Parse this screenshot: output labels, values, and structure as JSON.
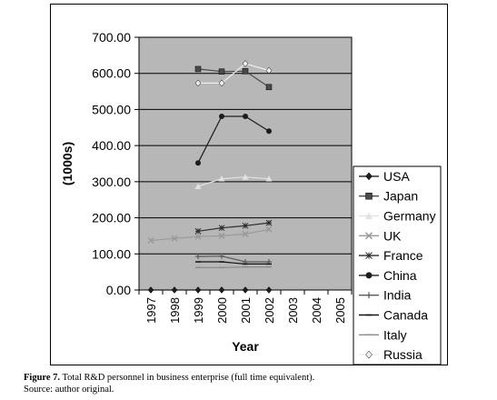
{
  "chart_data": {
    "type": "line",
    "title": "",
    "xlabel": "Year",
    "ylabel": "(1000s)",
    "categories": [
      "1997",
      "1998",
      "1999",
      "2000",
      "2001",
      "2002",
      "2003",
      "2004",
      "2005"
    ],
    "ylim": [
      0,
      700
    ],
    "yticks": [
      "0.00",
      "100.00",
      "200.00",
      "300.00",
      "400.00",
      "500.00",
      "600.00",
      "700.00"
    ],
    "grid": "horizontal",
    "legend_position": "right",
    "colors": {
      "plot_background": "#b7b7b7",
      "gridline": "#000000",
      "USA": "#1e1e1e",
      "Japan": "#4a4a4a",
      "Germany": "#e2e2e2",
      "UK": "#9a9a9a",
      "France": "#2c2c2c",
      "China": "#1c1c1c",
      "India": "#5a5a5a",
      "Canada": "#141414",
      "Italy": "#8c8c8c",
      "Russia": "#eeeeee"
    },
    "series": [
      {
        "name": "USA",
        "marker": "diamond",
        "values": [
          0,
          0,
          0,
          0,
          0,
          0,
          null,
          null,
          null
        ]
      },
      {
        "name": "Japan",
        "marker": "square",
        "values": [
          null,
          null,
          612,
          605,
          606,
          562,
          null,
          null,
          null
        ]
      },
      {
        "name": "Germany",
        "marker": "triangle",
        "values": [
          null,
          null,
          287,
          308,
          313,
          308,
          null,
          null,
          null
        ]
      },
      {
        "name": "UK",
        "marker": "x",
        "values": [
          137,
          143,
          148,
          150,
          155,
          168,
          null,
          null,
          null
        ]
      },
      {
        "name": "France",
        "marker": "star",
        "values": [
          null,
          null,
          163,
          172,
          178,
          186,
          null,
          null,
          null
        ]
      },
      {
        "name": "China",
        "marker": "circle",
        "values": [
          null,
          null,
          352,
          481,
          481,
          440,
          null,
          null,
          null
        ]
      },
      {
        "name": "India",
        "marker": "plus",
        "values": [
          null,
          null,
          93,
          94,
          78,
          78,
          null,
          null,
          null
        ]
      },
      {
        "name": "Canada",
        "marker": "dash",
        "values": [
          null,
          null,
          78,
          78,
          72,
          72,
          null,
          null,
          null
        ]
      },
      {
        "name": "Italy",
        "marker": "dash",
        "values": [
          null,
          null,
          62,
          62,
          64,
          64,
          null,
          null,
          null
        ]
      },
      {
        "name": "Russia",
        "marker": "diamond",
        "values": [
          null,
          null,
          573,
          573,
          627,
          608,
          null,
          null,
          null
        ]
      }
    ]
  },
  "caption": {
    "figure_label": "Figure 7.",
    "text": " Total R&D personnel in business enterprise (full time equivalent).",
    "source": "Source: author original."
  }
}
